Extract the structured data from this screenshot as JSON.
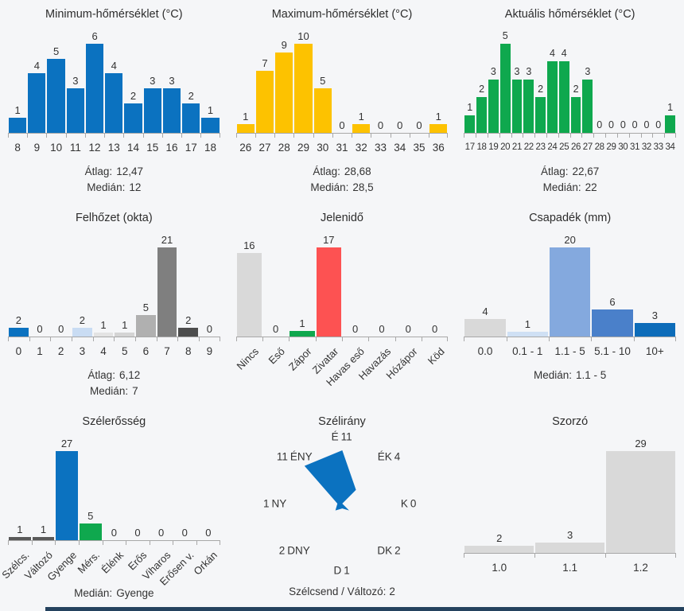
{
  "page": {
    "background": "#f5f6f8",
    "footer_strip_color": "#24425e"
  },
  "chart_data": [
    {
      "id": "min_temp",
      "type": "bar",
      "title": "Minimum-hőmérséklet (°C)",
      "categories": [
        "8",
        "9",
        "10",
        "11",
        "12",
        "13",
        "14",
        "15",
        "16",
        "17",
        "18"
      ],
      "values": [
        1,
        4,
        5,
        3,
        6,
        4,
        2,
        3,
        3,
        2,
        1
      ],
      "bar_color": "#0b72c0",
      "x_label_rotation": 0,
      "stats": [
        {
          "label": "Átlag:",
          "value": "12,47"
        },
        {
          "label": "Medián:",
          "value": "12"
        }
      ]
    },
    {
      "id": "max_temp",
      "type": "bar",
      "title": "Maximum-hőmérséklet (°C)",
      "categories": [
        "26",
        "27",
        "28",
        "29",
        "30",
        "31",
        "32",
        "33",
        "34",
        "35",
        "36"
      ],
      "values": [
        1,
        7,
        9,
        10,
        5,
        0,
        1,
        0,
        0,
        0,
        1
      ],
      "bar_color": "#fdc200",
      "x_label_rotation": 0,
      "stats": [
        {
          "label": "Átlag:",
          "value": "28,68"
        },
        {
          "label": "Medián:",
          "value": "28,5"
        }
      ]
    },
    {
      "id": "akt_temp",
      "type": "bar",
      "title": "Aktuális hőmérséklet (°C)",
      "categories": [
        "17",
        "18",
        "19",
        "20",
        "21",
        "22",
        "23",
        "24",
        "25",
        "26",
        "27",
        "28",
        "29",
        "30",
        "31",
        "32",
        "33",
        "34"
      ],
      "values": [
        1,
        2,
        3,
        5,
        3,
        3,
        2,
        4,
        4,
        2,
        3,
        0,
        0,
        0,
        0,
        0,
        0,
        1
      ],
      "bar_color": "#0fa84e",
      "x_label_rotation": 0,
      "stats": [
        {
          "label": "Átlag:",
          "value": "22,67"
        },
        {
          "label": "Medián:",
          "value": "22"
        }
      ]
    },
    {
      "id": "felhozet",
      "type": "bar",
      "title": "Felhőzet (okta)",
      "categories": [
        "0",
        "1",
        "2",
        "3",
        "4",
        "5",
        "6",
        "7",
        "8",
        "9"
      ],
      "values": [
        2,
        0,
        0,
        2,
        1,
        1,
        5,
        21,
        2,
        0
      ],
      "bar_colors": [
        "#0b72c0",
        "#b5d1ee",
        "#c9dcf3",
        "#c9dcf3",
        "#e3e3e3",
        "#d4d4d4",
        "#b0b0b0",
        "#7f7f7f",
        "#4d4d4d",
        "#3a3a3a"
      ],
      "x_label_rotation": 0,
      "stats": [
        {
          "label": "Átlag:",
          "value": "6,12"
        },
        {
          "label": "Medián:",
          "value": "7"
        }
      ]
    },
    {
      "id": "jelenido",
      "type": "bar",
      "title": "Jelenidő",
      "categories": [
        "Nincs",
        "Eső",
        "Zápor",
        "Zivatar",
        "Havas eső",
        "Havazás",
        "Hózápor",
        "Köd"
      ],
      "values": [
        16,
        0,
        1,
        17,
        0,
        0,
        0,
        0
      ],
      "bar_colors": [
        "#d9d9d9",
        "#d9d9d9",
        "#0fa84e",
        "#fd5252",
        "#d9d9d9",
        "#d9d9d9",
        "#d9d9d9",
        "#d9d9d9"
      ],
      "x_label_rotation": 45,
      "stats": []
    },
    {
      "id": "csapadek",
      "type": "bar",
      "title": "Csapadék (mm)",
      "categories": [
        "0.0",
        "0.1 - 1",
        "1.1 - 5",
        "5.1 - 10",
        "10+"
      ],
      "values": [
        4,
        1,
        20,
        6,
        3
      ],
      "bar_colors": [
        "#d9d9d9",
        "#cfe0f4",
        "#84a9de",
        "#4a80ca",
        "#0d6cb9"
      ],
      "x_label_rotation": 0,
      "stats": [
        {
          "label": "Medián:",
          "value": "1.1 - 5"
        }
      ]
    },
    {
      "id": "szelerosseg",
      "type": "bar",
      "title": "Szélerősség",
      "categories": [
        "Szélcs.",
        "Változó",
        "Gyenge",
        "Mérs.",
        "Élénk",
        "Erős",
        "Viharos",
        "Erősen v.",
        "Orkán"
      ],
      "values": [
        1,
        1,
        27,
        5,
        0,
        0,
        0,
        0,
        0
      ],
      "bar_colors": [
        "#595959",
        "#595959",
        "#0b72c0",
        "#0fa84e",
        "#d9d9d9",
        "#d9d9d9",
        "#d9d9d9",
        "#d9d9d9",
        "#d9d9d9"
      ],
      "x_label_rotation": 45,
      "stats": [
        {
          "label": "Medián:",
          "value": "Gyenge"
        }
      ]
    },
    {
      "id": "szelirany",
      "type": "radar",
      "title": "Szélirány",
      "directions": [
        {
          "label": "É",
          "value": 11
        },
        {
          "label": "ÉK",
          "value": 4
        },
        {
          "label": "K",
          "value": 0
        },
        {
          "label": "DK",
          "value": 2
        },
        {
          "label": "D",
          "value": 1
        },
        {
          "label": "DNY",
          "value": 2
        },
        {
          "label": "NY",
          "value": 1
        },
        {
          "label": "ÉNY",
          "value": 11
        }
      ],
      "fill_color": "#0b72c0",
      "footer_label": "Szélcsend / Változó:",
      "footer_value": "2"
    },
    {
      "id": "szorzo",
      "type": "bar",
      "title": "Szorzó",
      "categories": [
        "1.0",
        "1.1",
        "1.2"
      ],
      "values": [
        2,
        3,
        29
      ],
      "bar_color": "#d9d9d9",
      "x_label_rotation": 0,
      "stats": []
    }
  ]
}
